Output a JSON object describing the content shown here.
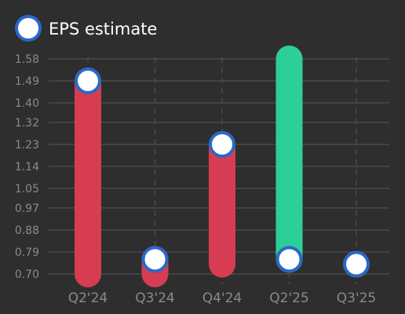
{
  "chart_data": {
    "type": "bar",
    "legend": {
      "label": "EPS estimate",
      "position": "top-left"
    },
    "categories": [
      "Q2'24",
      "Q3'24",
      "Q4'24",
      "Q2'25",
      "Q3'25"
    ],
    "y_ticks": [
      "0.70",
      "0.79",
      "0.88",
      "0.97",
      "1.05",
      "1.14",
      "1.23",
      "1.32",
      "1.40",
      "1.49",
      "1.58"
    ],
    "ylim": [
      0.7,
      1.58
    ],
    "grid": true,
    "series": [
      {
        "name": "EPS estimate",
        "kind": "marker",
        "values": [
          1.49,
          0.76,
          1.23,
          0.76,
          0.74
        ]
      },
      {
        "kind": "range-bar",
        "ranges": [
          {
            "from": 0.7,
            "to": 1.49,
            "status": "miss"
          },
          {
            "from": 0.7,
            "to": 0.76,
            "status": "miss"
          },
          {
            "from": 0.74,
            "to": 1.23,
            "status": "miss"
          },
          {
            "from": 0.76,
            "to": 1.58,
            "status": "beat"
          },
          null
        ]
      }
    ],
    "colors": {
      "miss": "#d63d52",
      "beat": "#2ccf96",
      "marker_fill": "#ffffff",
      "marker_stroke": "#2a68c8",
      "grid": "#4a4a4a",
      "tick_text": "#8a8a8a",
      "legend_text": "#ffffff",
      "background": "#2e2e2e"
    }
  }
}
